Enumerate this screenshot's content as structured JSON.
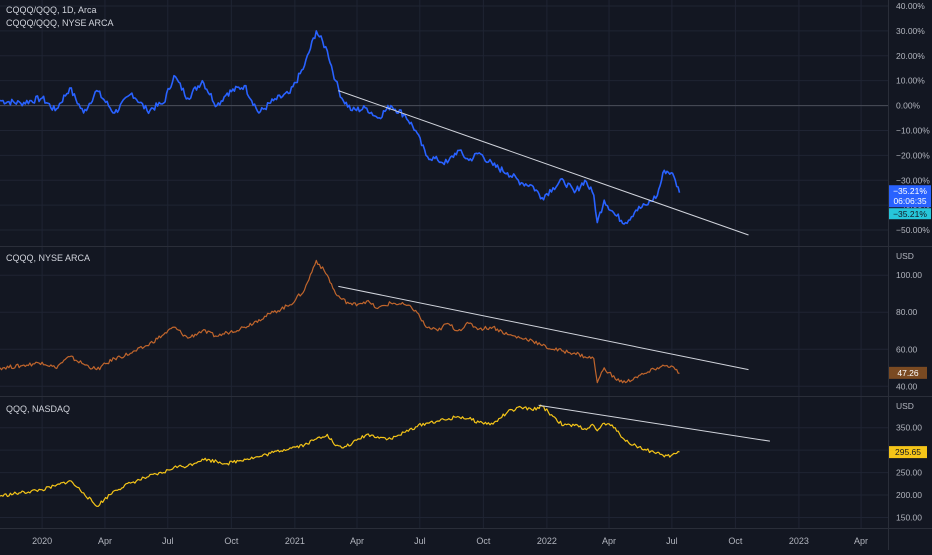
{
  "colors": {
    "background": "#131722",
    "grid": "#1f2433",
    "axis_text": "#b2b5be",
    "ratio_line": "#2962ff",
    "cqqq_line": "#c0652c",
    "qqq_line": "#f5c518",
    "trendline": "#d1d4dc",
    "last_badge_ratio_bg": "#2962ff",
    "last_badge_ratio2_bg": "#26c6da",
    "last_badge_cqqq_bg": "#7a4a22",
    "last_badge_qqq_bg": "#f5c518"
  },
  "panes": {
    "ratio": {
      "title_line1": "CQQQ/QQQ, 1D, Arca",
      "title_line2": "CQQQ/QQQ, NYSE ARCA",
      "price_label": "−35.21%",
      "countdown": "06:06:35",
      "price_label2": "−35.21%"
    },
    "cqqq": {
      "title": "CQQQ, NYSE ARCA",
      "axis_unit": "USD",
      "price_label": "47.26"
    },
    "qqq": {
      "title": "QQQ, NASDAQ",
      "axis_unit": "USD",
      "price_label": "295.65"
    }
  },
  "time_axis": {
    "labels": [
      "2020",
      "Apr",
      "Jul",
      "Oct",
      "2021",
      "Apr",
      "Jul",
      "Oct",
      "2022",
      "Apr",
      "Jul",
      "Oct",
      "2023",
      "Apr"
    ],
    "dates": [
      "2020-01-01",
      "2020-04-01",
      "2020-07-01",
      "2020-10-01",
      "2021-01-01",
      "2021-04-01",
      "2021-07-01",
      "2021-10-01",
      "2022-01-01",
      "2022-04-01",
      "2022-07-01",
      "2022-10-01",
      "2023-01-01",
      "2023-04-01"
    ]
  },
  "chart_data": [
    {
      "type": "line",
      "title": "CQQQ/QQQ, 1D, Arca",
      "subtitle": "CQQQ/QQQ, NYSE ARCA",
      "ylabel": "",
      "yticks": [
        "40.00%",
        "30.00%",
        "20.00%",
        "10.00%",
        "0.00%",
        "−10.00%",
        "−20.00%",
        "−30.00%",
        "−40.00%",
        "−50.00%"
      ],
      "ytick_values": [
        40,
        30,
        20,
        10,
        0,
        -10,
        -20,
        -30,
        -40,
        -50
      ],
      "ylim": [
        -54,
        40
      ],
      "baseline": 0,
      "last_value": -35.21,
      "series": [
        {
          "x": [
            "2019-11-01",
            "2019-12-01",
            "2020-01-01",
            "2020-01-20",
            "2020-02-10",
            "2020-03-01",
            "2020-03-20",
            "2020-04-15",
            "2020-05-10",
            "2020-06-01",
            "2020-06-25",
            "2020-07-10",
            "2020-07-30",
            "2020-08-20",
            "2020-09-10",
            "2020-09-25",
            "2020-10-20",
            "2020-11-10",
            "2020-12-01",
            "2020-12-25",
            "2021-01-15",
            "2021-02-01",
            "2021-02-17",
            "2021-03-01",
            "2021-03-10",
            "2021-03-25",
            "2021-04-15",
            "2021-05-01",
            "2021-05-20",
            "2021-06-10",
            "2021-06-25",
            "2021-07-10",
            "2021-07-27",
            "2021-08-10",
            "2021-08-25",
            "2021-09-10",
            "2021-09-25",
            "2021-10-15",
            "2021-11-05",
            "2021-11-25",
            "2021-12-10",
            "2021-12-25",
            "2022-01-10",
            "2022-01-25",
            "2022-02-10",
            "2022-02-25",
            "2022-03-10",
            "2022-03-15",
            "2022-03-25",
            "2022-04-10",
            "2022-04-25",
            "2022-05-10",
            "2022-05-25",
            "2022-06-10",
            "2022-06-20",
            "2022-06-30",
            "2022-07-06",
            "2022-07-12"
          ],
          "values": [
            2,
            1,
            3,
            -2,
            7,
            -3,
            6,
            -3,
            5,
            -2,
            1,
            12,
            3,
            10,
            0,
            5,
            8,
            -3,
            2,
            5,
            16,
            30,
            22,
            10,
            3,
            -2,
            -1,
            -5,
            0,
            -4,
            -10,
            -20,
            -22,
            -23,
            -18,
            -22,
            -19,
            -24,
            -27,
            -31,
            -32,
            -37,
            -33,
            -30,
            -35,
            -30,
            -36,
            -47,
            -38,
            -44,
            -47,
            -42,
            -40,
            -36,
            -26,
            -27,
            -30,
            -35
          ]
        }
      ],
      "trendline": {
        "from": [
          "2021-03-05",
          6
        ],
        "to": [
          "2022-10-20",
          -52
        ]
      }
    },
    {
      "type": "line",
      "title": "CQQQ, NYSE ARCA",
      "ylabel": "USD",
      "yticks": [
        "100.00",
        "80.00",
        "60.00",
        "40.00"
      ],
      "ytick_values": [
        100,
        80,
        60,
        40
      ],
      "ylim": [
        38,
        112
      ],
      "last_value": 47.26,
      "series": [
        {
          "x": [
            "2019-11-01",
            "2019-12-01",
            "2020-01-01",
            "2020-01-20",
            "2020-02-10",
            "2020-03-01",
            "2020-03-20",
            "2020-04-15",
            "2020-05-10",
            "2020-06-01",
            "2020-06-25",
            "2020-07-10",
            "2020-07-30",
            "2020-08-20",
            "2020-09-10",
            "2020-09-25",
            "2020-10-20",
            "2020-11-10",
            "2020-12-01",
            "2020-12-25",
            "2021-01-15",
            "2021-02-01",
            "2021-02-17",
            "2021-03-01",
            "2021-03-10",
            "2021-03-25",
            "2021-04-15",
            "2021-05-01",
            "2021-05-20",
            "2021-06-10",
            "2021-06-25",
            "2021-07-10",
            "2021-07-27",
            "2021-08-10",
            "2021-08-25",
            "2021-09-10",
            "2021-09-25",
            "2021-10-15",
            "2021-11-05",
            "2021-11-25",
            "2021-12-10",
            "2021-12-25",
            "2022-01-10",
            "2022-01-25",
            "2022-02-10",
            "2022-02-25",
            "2022-03-10",
            "2022-03-15",
            "2022-03-25",
            "2022-04-10",
            "2022-04-25",
            "2022-05-10",
            "2022-05-25",
            "2022-06-10",
            "2022-06-20",
            "2022-06-30",
            "2022-07-06",
            "2022-07-12"
          ],
          "values": [
            50,
            51,
            53,
            50,
            56,
            52,
            49,
            55,
            58,
            62,
            68,
            72,
            66,
            70,
            67,
            69,
            72,
            76,
            80,
            84,
            92,
            108,
            100,
            90,
            87,
            84,
            86,
            82,
            85,
            84,
            81,
            72,
            70,
            74,
            70,
            74,
            71,
            72,
            68,
            66,
            65,
            62,
            60,
            59,
            58,
            56,
            55,
            42,
            50,
            44,
            42,
            45,
            47,
            50,
            51,
            51,
            49,
            47
          ]
        }
      ],
      "trendline": {
        "from": [
          "2021-03-05",
          94
        ],
        "to": [
          "2022-10-20",
          49
        ]
      }
    },
    {
      "type": "line",
      "title": "QQQ, NASDAQ",
      "ylabel": "USD",
      "yticks": [
        "350.00",
        "300.00",
        "250.00",
        "200.00",
        "150.00"
      ],
      "ytick_values": [
        350,
        300,
        250,
        200,
        150
      ],
      "ylim": [
        140,
        405
      ],
      "last_value": 295.65,
      "series": [
        {
          "x": [
            "2019-11-01",
            "2019-12-01",
            "2020-01-01",
            "2020-01-20",
            "2020-02-10",
            "2020-03-01",
            "2020-03-20",
            "2020-04-15",
            "2020-05-10",
            "2020-06-01",
            "2020-06-25",
            "2020-07-10",
            "2020-07-30",
            "2020-08-20",
            "2020-09-10",
            "2020-09-25",
            "2020-10-20",
            "2020-11-10",
            "2020-12-01",
            "2020-12-25",
            "2021-01-15",
            "2021-02-01",
            "2021-02-17",
            "2021-03-01",
            "2021-03-10",
            "2021-03-25",
            "2021-04-15",
            "2021-05-01",
            "2021-05-20",
            "2021-06-10",
            "2021-06-25",
            "2021-07-10",
            "2021-07-27",
            "2021-08-10",
            "2021-08-25",
            "2021-09-10",
            "2021-09-25",
            "2021-10-15",
            "2021-11-05",
            "2021-11-25",
            "2021-12-10",
            "2021-12-25",
            "2022-01-10",
            "2022-01-25",
            "2022-02-10",
            "2022-02-25",
            "2022-03-10",
            "2022-03-15",
            "2022-03-25",
            "2022-04-10",
            "2022-04-25",
            "2022-05-10",
            "2022-05-25",
            "2022-06-10",
            "2022-06-20",
            "2022-06-30",
            "2022-07-06",
            "2022-07-12"
          ],
          "values": [
            198,
            205,
            212,
            220,
            232,
            205,
            175,
            210,
            228,
            240,
            250,
            262,
            265,
            280,
            275,
            270,
            280,
            285,
            295,
            305,
            312,
            325,
            335,
            310,
            305,
            315,
            335,
            330,
            325,
            340,
            352,
            360,
            365,
            368,
            375,
            370,
            362,
            358,
            385,
            395,
            390,
            398,
            375,
            355,
            355,
            348,
            355,
            343,
            360,
            350,
            320,
            310,
            300,
            295,
            285,
            288,
            292,
            296
          ]
        }
      ],
      "trendline": {
        "from": [
          "2021-12-20",
          400
        ],
        "to": [
          "2022-11-20",
          320
        ]
      }
    }
  ]
}
